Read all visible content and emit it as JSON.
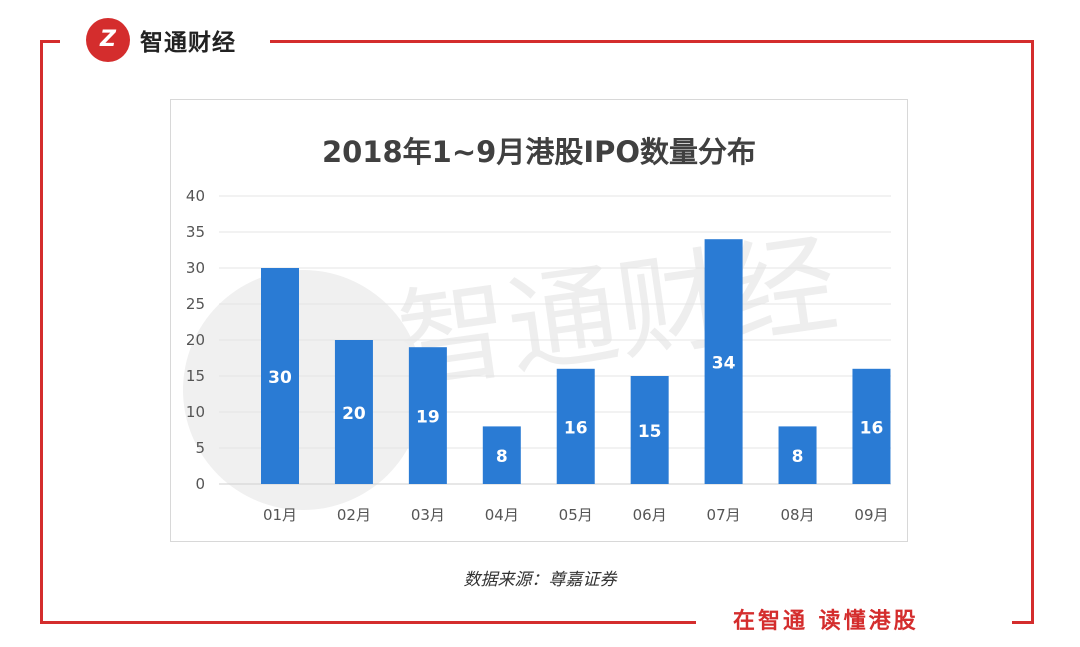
{
  "brand": {
    "name": "智通财经",
    "logo_text": "Z",
    "color": "#d42d2d"
  },
  "chart_data": {
    "type": "bar",
    "title": "2018年1~9月港股IPO数量分布",
    "categories": [
      "01月",
      "02月",
      "03月",
      "04月",
      "05月",
      "06月",
      "07月",
      "08月",
      "09月"
    ],
    "values": [
      30,
      20,
      19,
      8,
      16,
      15,
      34,
      8,
      16
    ],
    "data_labels": [
      "30",
      "20",
      "19",
      "8",
      "16",
      "15",
      "34",
      "8",
      "16"
    ],
    "ylim": [
      0,
      40
    ],
    "yticks": [
      "0",
      "5",
      "10",
      "15",
      "20",
      "25",
      "30",
      "35",
      "40"
    ],
    "ytick_values": [
      0,
      5,
      10,
      15,
      20,
      25,
      30,
      35,
      40
    ],
    "bar_color": "#2a7bd4",
    "grid": true
  },
  "watermark": "智通财经",
  "source": "数据来源：尊嘉证券",
  "slogan": "在智通 读懂港股"
}
